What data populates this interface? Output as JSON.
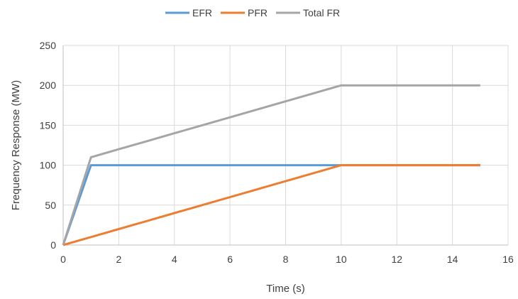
{
  "chart_data": {
    "type": "line",
    "xlabel": "Time (s)",
    "ylabel": "Frequency Response (MW)",
    "xlim": [
      0,
      16
    ],
    "ylim": [
      0,
      250
    ],
    "xticks": [
      0,
      2,
      4,
      6,
      8,
      10,
      12,
      14,
      16
    ],
    "yticks": [
      0,
      50,
      100,
      150,
      200,
      250
    ],
    "grid": true,
    "legend_position": "top",
    "series": [
      {
        "name": "EFR",
        "color": "#5b9bd5",
        "x": [
          0,
          1,
          2,
          3,
          4,
          5,
          6,
          7,
          8,
          9,
          10,
          11,
          12,
          13,
          14,
          15
        ],
        "y": [
          0,
          100,
          100,
          100,
          100,
          100,
          100,
          100,
          100,
          100,
          100,
          100,
          100,
          100,
          100,
          100
        ]
      },
      {
        "name": "PFR",
        "color": "#ed7d31",
        "x": [
          0,
          1,
          2,
          3,
          4,
          5,
          6,
          7,
          8,
          9,
          10,
          11,
          12,
          13,
          14,
          15
        ],
        "y": [
          0,
          10,
          20,
          30,
          40,
          50,
          60,
          70,
          80,
          90,
          100,
          100,
          100,
          100,
          100,
          100
        ]
      },
      {
        "name": "Total FR",
        "color": "#a5a5a5",
        "x": [
          0,
          1,
          2,
          3,
          4,
          5,
          6,
          7,
          8,
          9,
          10,
          11,
          12,
          13,
          14,
          15
        ],
        "y": [
          0,
          110,
          120,
          130,
          140,
          150,
          160,
          170,
          180,
          190,
          200,
          200,
          200,
          200,
          200,
          200
        ]
      }
    ]
  }
}
